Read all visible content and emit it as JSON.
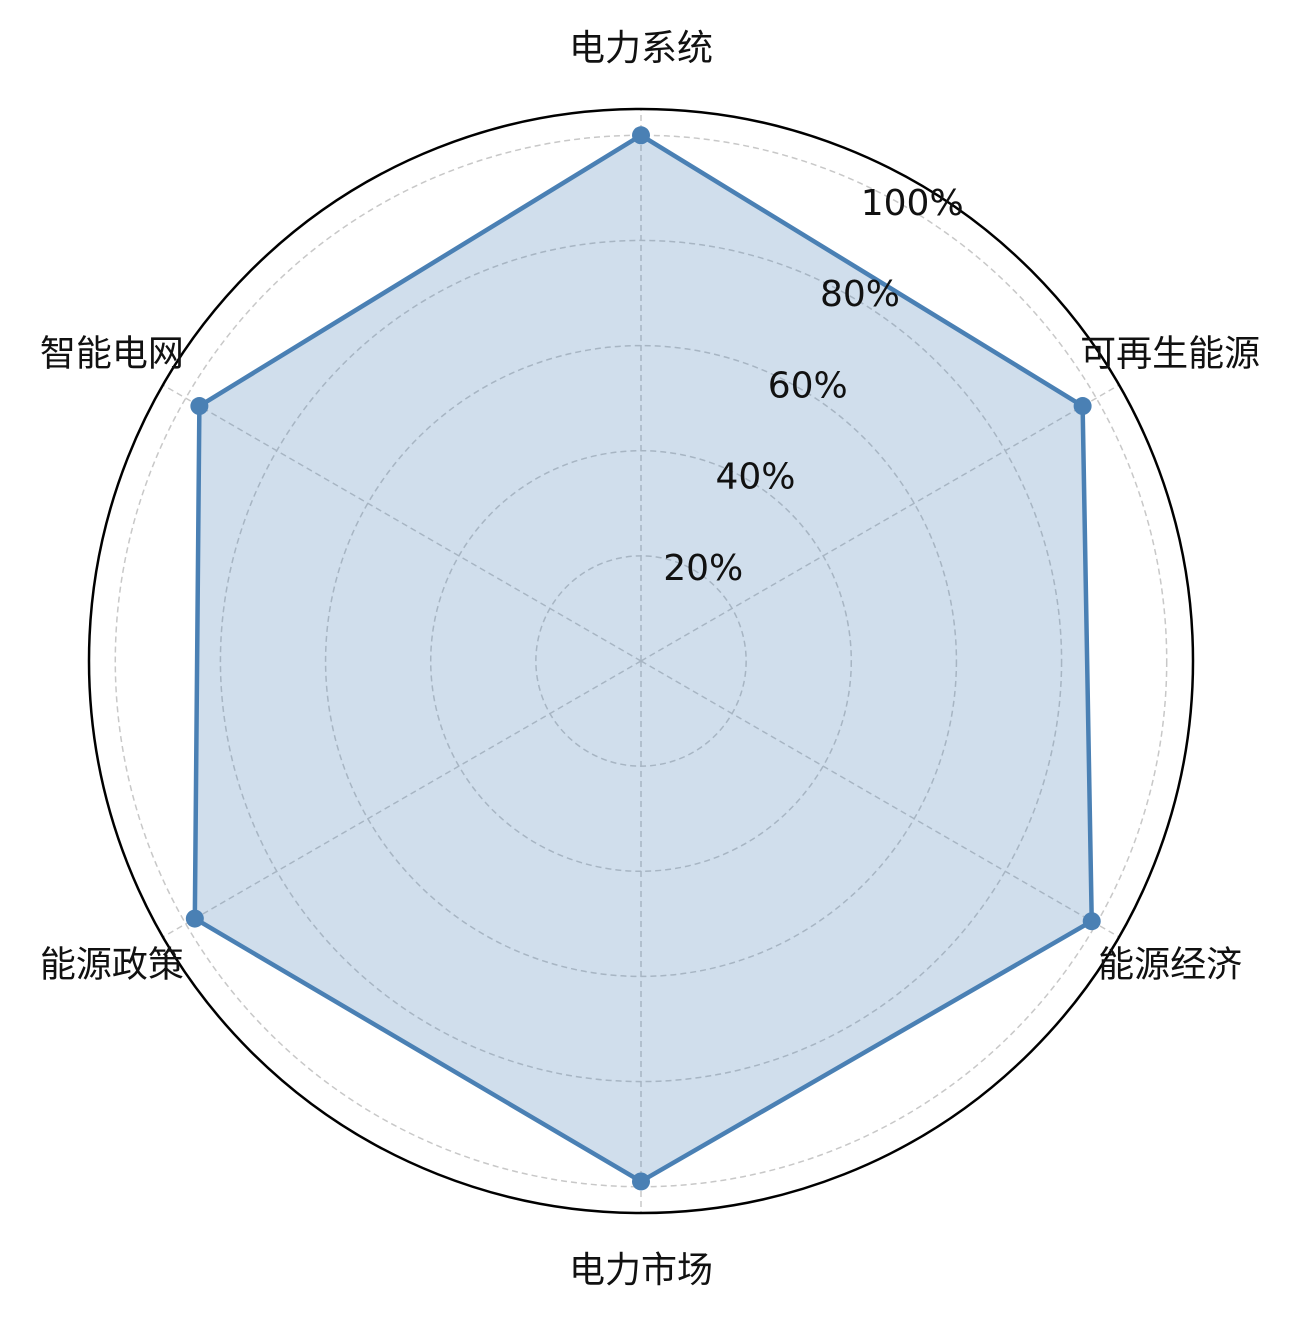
{
  "chart_data": {
    "type": "radar",
    "categories": [
      "电力系统",
      "可再生能源",
      "能源经济",
      "电力市场",
      "能源政策",
      "智能电网"
    ],
    "series": [
      {
        "color": "#4a80b4",
        "values": [
          100,
          97,
          99,
          99,
          98,
          97
        ]
      }
    ],
    "ylim": [
      0,
      105
    ],
    "yticks": [
      {
        "value": 20,
        "label": "20%"
      },
      {
        "value": 40,
        "label": "40%"
      },
      {
        "value": 60,
        "label": "60%"
      },
      {
        "value": 80,
        "label": "80%"
      },
      {
        "value": 100,
        "label": "100%"
      }
    ],
    "grid": true
  }
}
